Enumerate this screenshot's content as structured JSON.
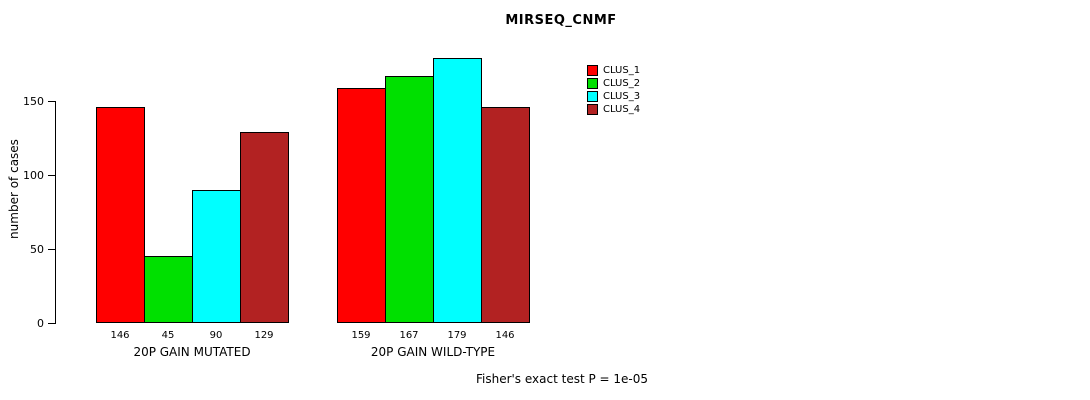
{
  "title": "MIRSEQ_CNMF",
  "footer": "Fisher's exact test P = 1e-05",
  "chart_data": {
    "type": "bar",
    "title": "MIRSEQ_CNMF",
    "xlabel": "",
    "ylabel": "number of cases",
    "ylim": [
      0,
      179
    ],
    "yticks": [
      0,
      50,
      100,
      150
    ],
    "grid": false,
    "legend_position": "top-right",
    "bar_value_labels": true,
    "categories": [
      "20P GAIN MUTATED",
      "20P GAIN WILD-TYPE"
    ],
    "series": [
      {
        "name": "CLUS_1",
        "color": "#FF0000",
        "values": [
          146,
          159
        ]
      },
      {
        "name": "CLUS_2",
        "color": "#00E000",
        "values": [
          45,
          167
        ]
      },
      {
        "name": "CLUS_3",
        "color": "#00FFFF",
        "values": [
          90,
          179
        ]
      },
      {
        "name": "CLUS_4",
        "color": "#B22222",
        "values": [
          129,
          146
        ]
      }
    ],
    "annotation": "Fisher's exact test P = 1e-05"
  }
}
